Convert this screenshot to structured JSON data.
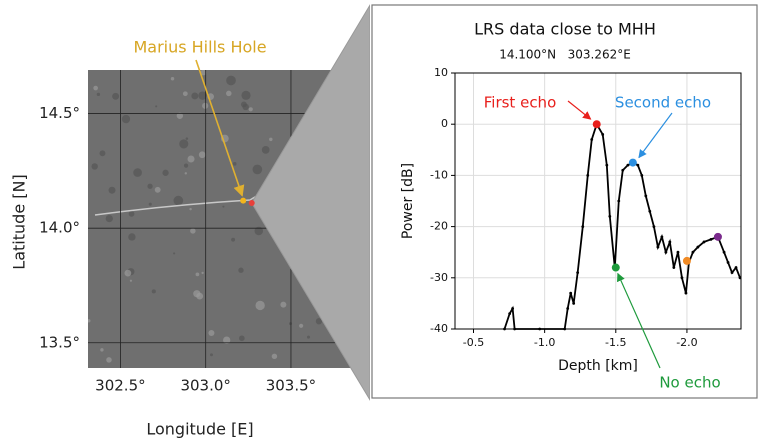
{
  "chart_data": [
    {
      "type": "map",
      "xlabel": "Longitude [E]",
      "ylabel": "Latitude [N]",
      "xlim": [
        302.31,
        303.94
      ],
      "ylim": [
        13.39,
        14.69
      ],
      "xticks": [
        {
          "value": 302.5,
          "label": "302.5°"
        },
        {
          "value": 303.0,
          "label": "303.0°"
        },
        {
          "value": 303.5,
          "label": "303.5°"
        }
      ],
      "yticks": [
        {
          "value": 13.5,
          "label": "13.5°"
        },
        {
          "value": 14.0,
          "label": "14.0°"
        },
        {
          "value": 14.5,
          "label": "14.5°"
        }
      ],
      "grid": true,
      "markers": [
        {
          "x": 303.22,
          "y": 14.12,
          "color": "#f2b51c",
          "label": "Marius Hills Hole"
        },
        {
          "x": 303.27,
          "y": 14.11,
          "color": "#e8403a"
        }
      ]
    },
    {
      "type": "line",
      "title": "LRS data close to MHH",
      "subtitle": "14.100°N   303.262°E",
      "xlabel": "Depth [km]",
      "ylabel": "Power [dB]",
      "x": [
        -0.718,
        -0.754,
        -0.775,
        -0.789,
        -0.965,
        -1.141,
        -1.162,
        -1.183,
        -1.204,
        -1.232,
        -1.268,
        -1.303,
        -1.331,
        -1.366,
        -1.408,
        -1.437,
        -1.458,
        -1.493,
        -1.521,
        -1.549,
        -1.585,
        -1.62,
        -1.655,
        -1.683,
        -1.711,
        -1.739,
        -1.768,
        -1.796,
        -1.824,
        -1.852,
        -1.88,
        -1.908,
        -1.937,
        -1.965,
        -1.993,
        -2.014,
        -2.042,
        -2.077,
        -2.12,
        -2.169,
        -2.218,
        -2.261,
        -2.289,
        -2.317,
        -2.345,
        -2.373
      ],
      "series": [
        {
          "color": "#000000",
          "values": [
            -40,
            -37,
            -36,
            -40,
            -40,
            -40,
            -36,
            -33,
            -35,
            -29,
            -20,
            -10,
            -3,
            0,
            -2,
            -8,
            -18,
            -28,
            -15,
            -9,
            -8,
            -7.5,
            -8,
            -10,
            -14,
            -17,
            -20,
            -24,
            -22,
            -25,
            -23,
            -28,
            -25,
            -30,
            -33,
            -27,
            -25,
            -24,
            -23,
            -22.5,
            -22,
            -25,
            -27,
            -29,
            -28,
            -30
          ]
        }
      ],
      "xlim": [
        -0.37,
        -2.38
      ],
      "ylim": [
        -40,
        10
      ],
      "xticks": [
        -0.5,
        {
          "value": -1.0,
          "label": "-1.0"
        },
        -1.5,
        {
          "value": -2.0,
          "label": "-2.0"
        }
      ],
      "yticks": [
        10,
        0,
        -10,
        -20,
        -30,
        -40
      ],
      "grid": true,
      "highlights": [
        {
          "x": -1.366,
          "y": 0,
          "color": "#e8201c",
          "label": "First echo"
        },
        {
          "x": -1.62,
          "y": -7.5,
          "color": "#2b8fe0",
          "label": "Second echo"
        },
        {
          "x": -1.5,
          "y": -28,
          "color": "#1e9a3c",
          "label": "No echo"
        },
        {
          "x": -2.0,
          "y": -26.7,
          "color": "#f08a24"
        },
        {
          "x": -2.218,
          "y": -22,
          "color": "#7a2a8c"
        }
      ]
    }
  ]
}
